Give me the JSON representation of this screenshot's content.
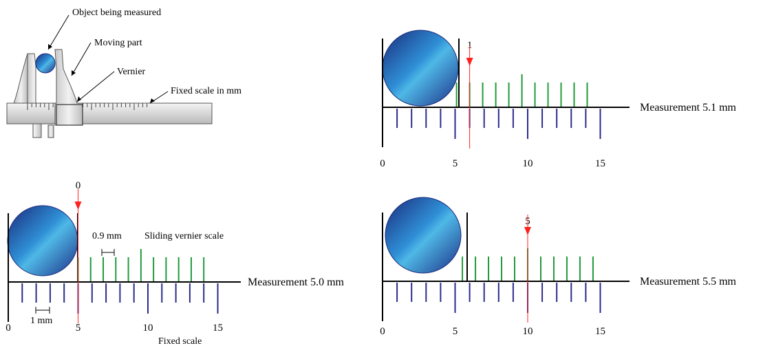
{
  "colors": {
    "fixed_tick": "#2a2a8c",
    "vernier_tick": "#1f9a3a",
    "marker": "#ff2020",
    "axis": "#000000"
  },
  "caliper": {
    "labels": {
      "object": "Object being measured",
      "moving": "Moving part",
      "vernier": "Vernier",
      "fixed": "Fixed scale in mm"
    }
  },
  "panels": {
    "p50": {
      "marker_label": "0",
      "measurement": "Measurement 5.0 mm",
      "ticks": [
        "0",
        "5",
        "10",
        "15"
      ],
      "vernier_spacing": "0.9 mm",
      "vernier_title": "Sliding vernier scale",
      "fixed_spacing": "1 mm",
      "fixed_title": "Fixed scale"
    },
    "p51": {
      "marker_label": "1",
      "measurement": "Measurement 5.1 mm",
      "ticks": [
        "0",
        "5",
        "10",
        "15"
      ]
    },
    "p55": {
      "marker_label": "5",
      "measurement": "Measurement 5.5 mm",
      "ticks": [
        "0",
        "5",
        "10",
        "15"
      ]
    }
  }
}
